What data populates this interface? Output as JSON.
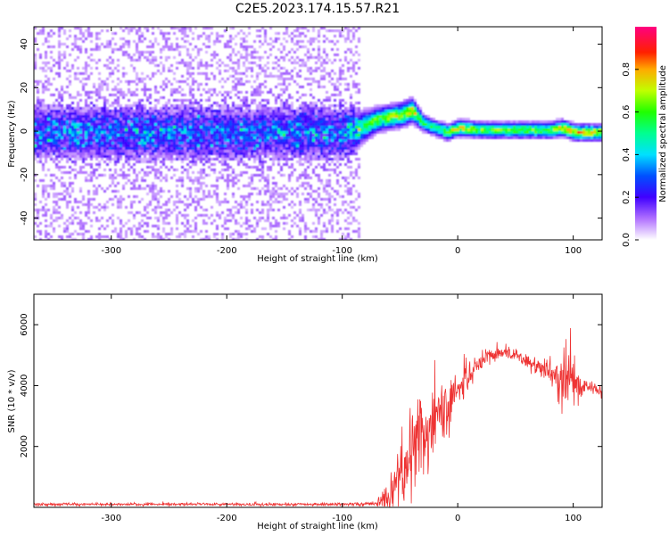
{
  "title": "C2E5.2023.174.15.57.R21",
  "chart_data": [
    {
      "type": "heatmap",
      "xlabel": "Height of straight line (km)",
      "ylabel": "Frequency (Hz)",
      "xlim": [
        -367,
        125
      ],
      "ylim": [
        -50,
        48
      ],
      "xticks": [
        -300,
        -200,
        -100,
        0,
        100
      ],
      "yticks": [
        -40,
        -20,
        0,
        20,
        40
      ],
      "colorbar": {
        "label": "Normalized spectral amplitude",
        "ticks": [
          0.0,
          0.2,
          0.4,
          0.6,
          0.8
        ],
        "range": [
          0,
          1
        ],
        "colormap": "rainbow (white-purple-blue-cyan-green-yellow-red-magenta)"
      },
      "description_profile": {
        "x": [
          -367,
          -300,
          -200,
          -100,
          -85,
          -70,
          -50,
          -40,
          -30,
          -20,
          -10,
          0,
          20,
          50,
          80,
          90,
          100,
          125
        ],
        "center_freq": [
          0,
          0,
          0,
          0,
          2,
          6,
          8,
          10,
          4,
          2,
          0,
          2,
          1,
          1,
          1,
          2,
          0,
          0
        ],
        "band_halfwidth": [
          7,
          7,
          7,
          7,
          4,
          3,
          3,
          3,
          2,
          2,
          2,
          2,
          2,
          2,
          2,
          2,
          2,
          2
        ],
        "peak_amplitude": [
          0.25,
          0.25,
          0.25,
          0.25,
          0.5,
          0.6,
          0.65,
          0.7,
          0.55,
          0.5,
          0.6,
          0.7,
          0.6,
          0.6,
          0.6,
          0.75,
          0.75,
          0.7
        ]
      }
    },
    {
      "type": "line",
      "xlabel": "Height of straight line (km)",
      "ylabel": "SNR (10 * v/v)",
      "xlim": [
        -367,
        125
      ],
      "ylim": [
        0,
        7000
      ],
      "xticks": [
        -300,
        -200,
        -100,
        0,
        100
      ],
      "yticks": [
        2000,
        4000,
        6000
      ],
      "line_color": "#ee3333",
      "series": [
        {
          "x": [
            -367,
            -300,
            -200,
            -100,
            -70,
            -60,
            -50,
            -40,
            -30,
            -20,
            -10,
            0,
            10,
            20,
            30,
            40,
            50,
            60,
            70,
            80,
            90,
            95,
            100,
            110,
            125
          ],
          "base": [
            100,
            100,
            100,
            100,
            120,
            400,
            1000,
            1800,
            2400,
            3000,
            3400,
            3800,
            4300,
            4800,
            5000,
            5100,
            5000,
            4800,
            4600,
            4500,
            4300,
            4200,
            4100,
            4000,
            3800
          ],
          "noise": [
            40,
            40,
            40,
            40,
            60,
            600,
            1100,
            1400,
            1300,
            1200,
            800,
            600,
            400,
            250,
            200,
            200,
            200,
            200,
            250,
            400,
            900,
            1200,
            600,
            200,
            150
          ]
        }
      ]
    }
  ]
}
